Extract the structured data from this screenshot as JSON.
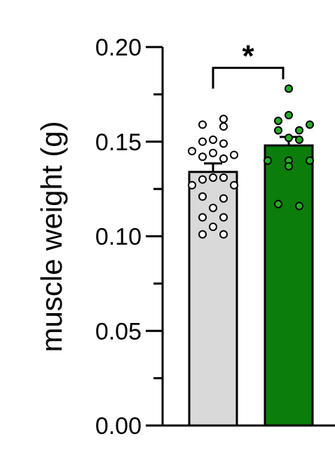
{
  "chart_data": {
    "type": "bar",
    "ylabel": "muscle weight (g)",
    "ylim": [
      0,
      0.2
    ],
    "yticks": [
      {
        "value": 0.0,
        "label": "0.00"
      },
      {
        "value": 0.05,
        "label": "0.05"
      },
      {
        "value": 0.1,
        "label": "0.10"
      },
      {
        "value": 0.15,
        "label": "0.15"
      },
      {
        "value": 0.2,
        "label": "0.20"
      }
    ],
    "yminor": [
      0.025,
      0.075,
      0.125,
      0.175
    ],
    "groups": [
      {
        "mean": 0.134,
        "sem": 0.0045,
        "color": "#d9d9d9",
        "point_fill": "#ffffff",
        "points": [
          {
            "y": 0.162,
            "side": 1
          },
          {
            "y": 0.159,
            "side": -1
          },
          {
            "y": 0.158,
            "side": 1
          },
          {
            "y": 0.151,
            "side": 0
          },
          {
            "y": 0.15,
            "side": -1
          },
          {
            "y": 0.149,
            "side": 1
          },
          {
            "y": 0.145,
            "side": -2
          },
          {
            "y": 0.144,
            "side": 0
          },
          {
            "y": 0.143,
            "side": 2
          },
          {
            "y": 0.142,
            "side": -1
          },
          {
            "y": 0.141,
            "side": 1
          },
          {
            "y": 0.13,
            "side": -1
          },
          {
            "y": 0.131,
            "side": 0
          },
          {
            "y": 0.131,
            "side": 1
          },
          {
            "y": 0.127,
            "side": -2
          },
          {
            "y": 0.127,
            "side": 2
          },
          {
            "y": 0.121,
            "side": -1
          },
          {
            "y": 0.12,
            "side": 1
          },
          {
            "y": 0.115,
            "side": 0
          },
          {
            "y": 0.11,
            "side": -1
          },
          {
            "y": 0.11,
            "side": 1
          },
          {
            "y": 0.105,
            "side": 0
          },
          {
            "y": 0.101,
            "side": -1
          },
          {
            "y": 0.101,
            "side": 1
          }
        ]
      },
      {
        "mean": 0.148,
        "sem": 0.0045,
        "color": "#0a7d0a",
        "point_fill": "#22b022",
        "points": [
          {
            "y": 0.178,
            "side": 0
          },
          {
            "y": 0.164,
            "side": 0
          },
          {
            "y": 0.161,
            "side": -1
          },
          {
            "y": 0.159,
            "side": 2
          },
          {
            "y": 0.156,
            "side": -1
          },
          {
            "y": 0.156,
            "side": 1
          },
          {
            "y": 0.152,
            "side": 0
          },
          {
            "y": 0.151,
            "side": 1
          },
          {
            "y": 0.14,
            "side": -2
          },
          {
            "y": 0.14,
            "side": 0
          },
          {
            "y": 0.14,
            "side": 2
          },
          {
            "y": 0.137,
            "side": 0
          },
          {
            "y": 0.117,
            "side": -1
          },
          {
            "y": 0.116,
            "side": 1
          }
        ]
      }
    ],
    "significance": {
      "label": "*",
      "bracket_y": 0.189
    }
  }
}
